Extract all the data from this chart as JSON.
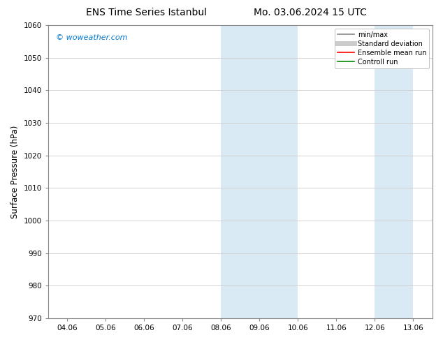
{
  "title_left": "ENS Time Series Istanbul",
  "title_right": "Mo. 03.06.2024 15 UTC",
  "ylabel": "Surface Pressure (hPa)",
  "ylim": [
    970,
    1060
  ],
  "yticks": [
    970,
    980,
    990,
    1000,
    1010,
    1020,
    1030,
    1040,
    1050,
    1060
  ],
  "xtick_labels": [
    "04.06",
    "05.06",
    "06.06",
    "07.06",
    "08.06",
    "09.06",
    "10.06",
    "11.06",
    "12.06",
    "13.06"
  ],
  "watermark": "© woweather.com",
  "watermark_color": "#0077cc",
  "background_color": "#ffffff",
  "plot_bg_color": "#ffffff",
  "shade_regions": [
    {
      "xstart": 4.0,
      "xend": 6.0
    },
    {
      "xstart": 8.0,
      "xend": 9.0
    }
  ],
  "shade_color": "#daeaf5",
  "legend_entries": [
    {
      "label": "min/max",
      "color": "#888888",
      "lw": 1.2,
      "style": "-"
    },
    {
      "label": "Standard deviation",
      "color": "#cccccc",
      "lw": 5,
      "style": "-"
    },
    {
      "label": "Ensemble mean run",
      "color": "#ff0000",
      "lw": 1.2,
      "style": "-"
    },
    {
      "label": "Controll run",
      "color": "#008800",
      "lw": 1.2,
      "style": "-"
    }
  ],
  "grid_color": "#cccccc",
  "title_fontsize": 10,
  "tick_fontsize": 7.5,
  "ylabel_fontsize": 8.5
}
